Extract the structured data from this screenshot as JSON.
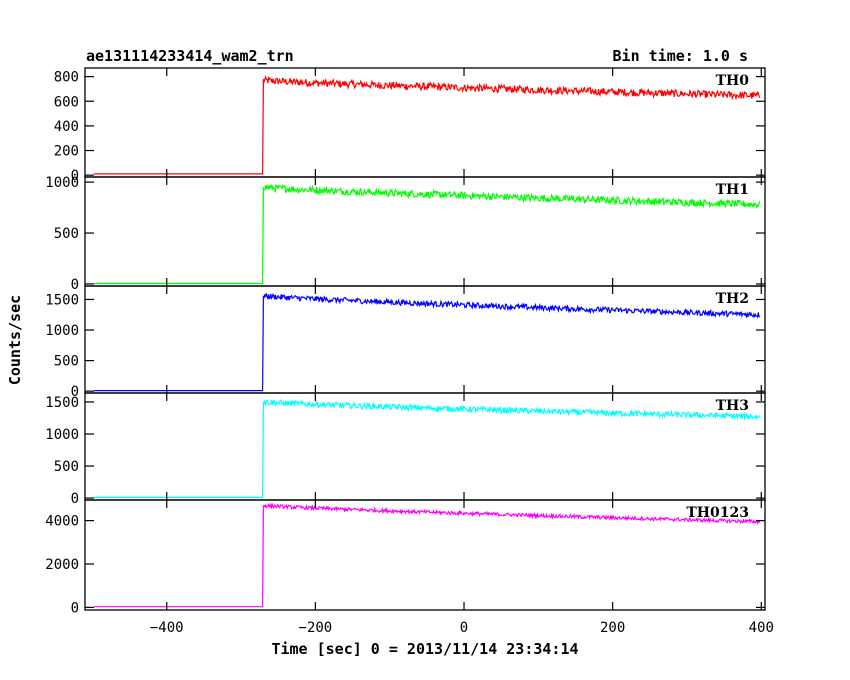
{
  "header": {
    "title": "ae131114233414_wam2_trn",
    "bin_time": "Bin time: 1.0 s"
  },
  "chart_data": {
    "type": "line",
    "xlabel": "Time [sec] 0 = 2013/11/14 23:34:14",
    "ylabel": "Counts/sec",
    "xlim": [
      -510,
      405
    ],
    "x_ticks": [
      -400,
      -200,
      0,
      200,
      400
    ],
    "x_tick_labels": [
      "−400",
      "−200",
      "0",
      "200",
      "400"
    ],
    "step_time": -270,
    "panels": [
      {
        "name": "TH0",
        "color": "#ff0000",
        "ylim": [
          -15,
          870
        ],
        "y_ticks": [
          0,
          200,
          400,
          600,
          800
        ],
        "baseline": 10,
        "level_start": 770,
        "level_end": 645,
        "noise": 30,
        "x_end": 398
      },
      {
        "name": "TH1",
        "color": "#00ff00",
        "ylim": [
          -20,
          1050
        ],
        "y_ticks": [
          0,
          500,
          1000
        ],
        "baseline": 5,
        "level_start": 950,
        "level_end": 780,
        "noise": 35,
        "x_end": 398
      },
      {
        "name": "TH2",
        "color": "#0000ff",
        "ylim": [
          -30,
          1720
        ],
        "y_ticks": [
          0,
          500,
          1000,
          1500
        ],
        "baseline": 10,
        "level_start": 1560,
        "level_end": 1250,
        "noise": 45,
        "x_end": 398
      },
      {
        "name": "TH3",
        "color": "#00ffff",
        "ylim": [
          -30,
          1640
        ],
        "y_ticks": [
          0,
          500,
          1000,
          1500
        ],
        "baseline": 10,
        "level_start": 1500,
        "level_end": 1270,
        "noise": 45,
        "x_end": 398
      },
      {
        "name": "TH0123",
        "color": "#ff00ff",
        "ylim": [
          -120,
          4950
        ],
        "y_ticks": [
          0,
          2000,
          4000
        ],
        "baseline": 30,
        "level_start": 4700,
        "level_end": 3950,
        "noise": 80,
        "x_end": 398
      }
    ]
  }
}
